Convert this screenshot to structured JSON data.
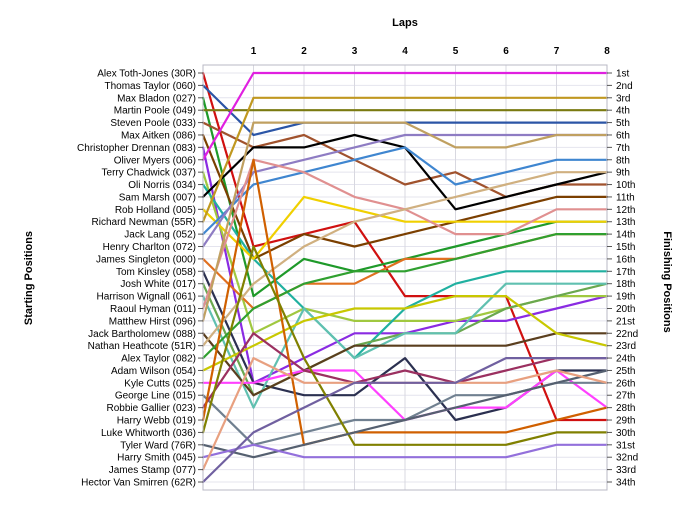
{
  "chart_data": {
    "type": "line",
    "title": "",
    "xlabel": "Laps",
    "ylabel_left": "Starting Positions",
    "ylabel_right": "Finishing Positions",
    "x": [
      0,
      1,
      2,
      3,
      4,
      5,
      6,
      7,
      8
    ],
    "x_tick_labels": [
      "1",
      "2",
      "3",
      "4",
      "5",
      "6",
      "7",
      "8"
    ],
    "ylim": [
      1,
      34
    ],
    "grid": true,
    "start_labels": [
      "Alex Toth-Jones (30R)",
      "Thomas Taylor (060)",
      "Max Bladon (027)",
      "Martin Poole (049)",
      "Steven Poole (033)",
      "Max Aitken (086)",
      "Christopher Drennan (083)",
      "Oliver Myers (006)",
      "Terry Chadwick (037)",
      "Oli Norris (034)",
      "Sam Marsh (007)",
      "Rob Holland (005)",
      "Richard Newman (55R)",
      "Jack Lang (052)",
      "Henry Charlton (072)",
      "James Singleton (000)",
      "Tom Kinsley (058)",
      "Josh White (017)",
      "Harrison Wignall (061)",
      "Raoul Hyman (011)",
      "Matthew Hirst (096)",
      "Jack Bartholomew (088)",
      "Nathan Heathcote (51R)",
      "Alex Taylor (082)",
      "Adam Wilson (054)",
      "Kyle Cutts (025)",
      "George Line (015)",
      "Robbie Gallier (023)",
      "Harry Webb (019)",
      "Luke Whitworth (036)",
      "Tyler Ward (76R)",
      "Harry Smith (045)",
      "James Stamp (077)",
      "Hector Van Smirren (62R)"
    ],
    "finish_labels": [
      "1st",
      "2nd",
      "3rd",
      "4th",
      "5th",
      "6th",
      "7th",
      "8th",
      "9th",
      "10th",
      "11th",
      "12th",
      "13th",
      "14th",
      "15th",
      "16th",
      "17th",
      "18th",
      "19th",
      "20th",
      "21st",
      "22nd",
      "23rd",
      "24th",
      "25th",
      "26th",
      "27th",
      "28th",
      "29th",
      "30th",
      "31st",
      "32nd",
      "33rd",
      "34th"
    ],
    "series": [
      {
        "color": "#d01010",
        "values": [
          1,
          15,
          14,
          13,
          19,
          19,
          19,
          29,
          29
        ]
      },
      {
        "color": "#2b55a6",
        "values": [
          2,
          6,
          5,
          5,
          5,
          5,
          5,
          5,
          5
        ]
      },
      {
        "color": "#1f9a2a",
        "values": [
          3,
          19,
          16,
          17,
          16,
          15,
          14,
          13,
          13
        ]
      },
      {
        "color": "#7a7a10",
        "values": [
          4,
          4,
          4,
          4,
          4,
          4,
          4,
          4,
          4
        ]
      },
      {
        "color": "#a0522d",
        "values": [
          5,
          7,
          6,
          8,
          10,
          9,
          11,
          10,
          10
        ]
      },
      {
        "color": "#7b3f00",
        "values": [
          6,
          16,
          14,
          15,
          14,
          13,
          12,
          11,
          11
        ]
      },
      {
        "color": "#8a2be2",
        "values": [
          7,
          26,
          24,
          22,
          22,
          21,
          21,
          20,
          19
        ]
      },
      {
        "color": "#e020e0",
        "values": [
          8,
          1,
          1,
          1,
          1,
          1,
          1,
          1,
          1
        ]
      },
      {
        "color": "#a0c840",
        "values": [
          9,
          22,
          20,
          21,
          21,
          21,
          20,
          19,
          19
        ]
      },
      {
        "color": "#20b0a0",
        "values": [
          10,
          16,
          20,
          24,
          20,
          18,
          17,
          17,
          17
        ]
      },
      {
        "color": "#000000",
        "values": [
          11,
          7,
          7,
          6,
          7,
          12,
          11,
          10,
          9
        ]
      },
      {
        "color": "#f0d000",
        "values": [
          12,
          16,
          11,
          12,
          13,
          13,
          13,
          13,
          13
        ]
      },
      {
        "color": "#c09820",
        "values": [
          13,
          3,
          3,
          3,
          3,
          3,
          3,
          3,
          3
        ]
      },
      {
        "color": "#3f86d0",
        "values": [
          14,
          10,
          9,
          8,
          7,
          10,
          9,
          8,
          8
        ]
      },
      {
        "color": "#8e7cc3",
        "values": [
          15,
          9,
          8,
          7,
          6,
          6,
          6,
          6,
          6
        ]
      },
      {
        "color": "#e07020",
        "values": [
          16,
          20,
          18,
          18,
          16,
          16,
          15,
          14,
          14
        ]
      },
      {
        "color": "#2b3050",
        "values": [
          17,
          26,
          27,
          27,
          24,
          29,
          28,
          25,
          25
        ]
      },
      {
        "color": "#6aa84f",
        "values": [
          18,
          27,
          25,
          23,
          22,
          22,
          20,
          19,
          18
        ]
      },
      {
        "color": "#60c0b0",
        "values": [
          19,
          28,
          20,
          24,
          22,
          22,
          18,
          18,
          18
        ]
      },
      {
        "color": "#e09090",
        "values": [
          20,
          8,
          9,
          11,
          12,
          14,
          14,
          12,
          12
        ]
      },
      {
        "color": "#c0a060",
        "values": [
          21,
          5,
          5,
          5,
          5,
          7,
          7,
          6,
          6
        ]
      },
      {
        "color": "#5a3e1e",
        "values": [
          22,
          27,
          25,
          23,
          23,
          23,
          23,
          22,
          22
        ]
      },
      {
        "color": "#d0b080",
        "values": [
          23,
          18,
          15,
          13,
          12,
          11,
          10,
          9,
          9
        ]
      },
      {
        "color": "#30a030",
        "values": [
          24,
          20,
          18,
          17,
          17,
          16,
          15,
          14,
          14
        ]
      },
      {
        "color": "#c8c800",
        "values": [
          25,
          23,
          21,
          20,
          20,
          19,
          19,
          22,
          23
        ]
      },
      {
        "color": "#ff40ff",
        "values": [
          26,
          26,
          25,
          25,
          29,
          28,
          28,
          25,
          28
        ]
      },
      {
        "color": "#708090",
        "values": [
          27,
          31,
          30,
          29,
          29,
          27,
          27,
          26,
          26
        ]
      },
      {
        "color": "#9b3060",
        "values": [
          28,
          22,
          25,
          26,
          25,
          26,
          25,
          24,
          24
        ]
      },
      {
        "color": "#d06000",
        "values": [
          29,
          8,
          31,
          30,
          30,
          30,
          30,
          29,
          28
        ]
      },
      {
        "color": "#808000",
        "values": [
          30,
          15,
          24,
          31,
          31,
          31,
          31,
          30,
          30
        ]
      },
      {
        "color": "#556070",
        "values": [
          31,
          32,
          31,
          30,
          29,
          28,
          27,
          26,
          25
        ]
      },
      {
        "color": "#9370db",
        "values": [
          32,
          31,
          32,
          32,
          32,
          32,
          32,
          31,
          31
        ]
      },
      {
        "color": "#e8a080",
        "values": [
          33,
          24,
          26,
          26,
          26,
          26,
          26,
          25,
          26
        ]
      },
      {
        "color": "#7060a0",
        "values": [
          34,
          30,
          28,
          26,
          26,
          26,
          24,
          24,
          24
        ]
      }
    ]
  }
}
